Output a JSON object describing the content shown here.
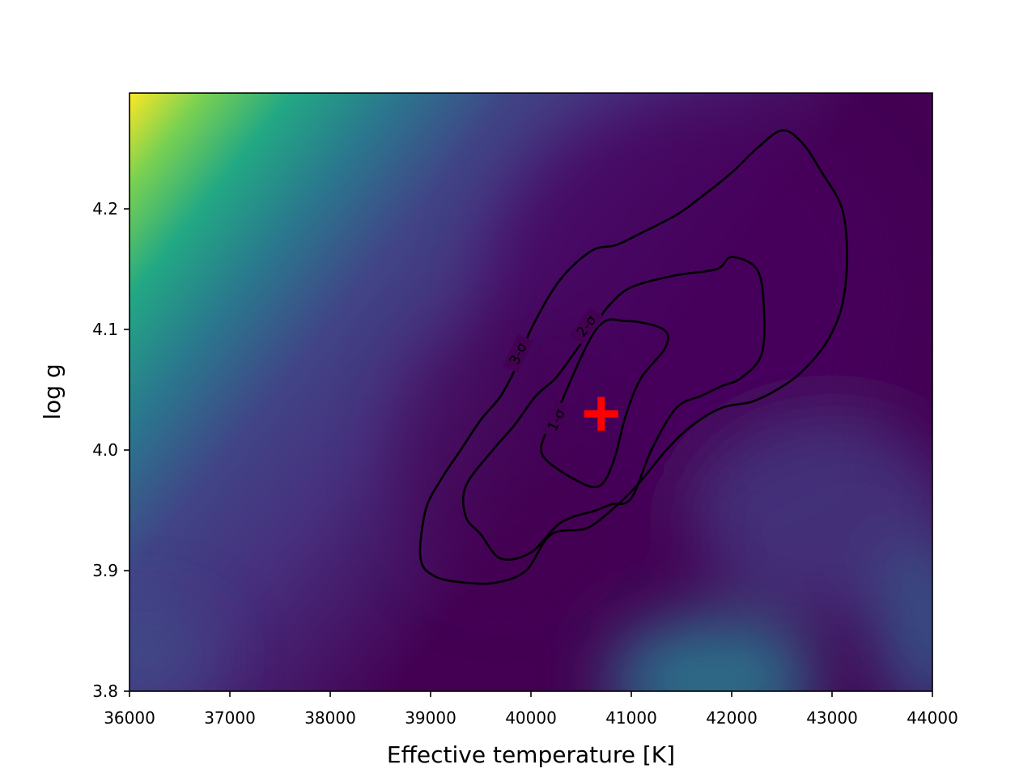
{
  "chart_data": {
    "type": "heatmap",
    "title": "",
    "xlabel": "Effective temperature [K]",
    "ylabel": "log g",
    "xlim": [
      36000,
      44000
    ],
    "ylim": [
      3.8,
      4.296
    ],
    "x_ticks": [
      36000,
      37000,
      38000,
      39000,
      40000,
      41000,
      42000,
      43000,
      44000
    ],
    "x_tick_labels": [
      "36000",
      "37000",
      "38000",
      "39000",
      "40000",
      "41000",
      "42000",
      "43000",
      "44000"
    ],
    "y_ticks": [
      3.8,
      3.9,
      4.0,
      4.1,
      4.2
    ],
    "y_tick_labels": [
      "3.8",
      "3.9",
      "4.0",
      "4.1",
      "4.2"
    ],
    "colormap": "viridis",
    "grid": false,
    "heatmap_features": [
      {
        "x": 36000,
        "y": 4.296,
        "level": 1.0
      },
      {
        "x": 42000,
        "y": 3.8,
        "level": 0.45
      },
      {
        "x": 44000,
        "y": 3.85,
        "level": 0.3
      },
      {
        "x": 40500,
        "y": 4.0,
        "level": 0.0
      }
    ],
    "best_fit": {
      "teff": 40700,
      "logg": 4.03,
      "marker": "+",
      "color": "#ff0000"
    },
    "contours": [
      {
        "label": "1-σ",
        "label_at": [
          40250,
          4.025
        ],
        "points": [
          [
            40250,
            4.03
          ],
          [
            40650,
            4.1
          ],
          [
            40950,
            4.107
          ],
          [
            41320,
            4.1
          ],
          [
            41340,
            4.085
          ],
          [
            41100,
            4.06
          ],
          [
            40950,
            4.03
          ],
          [
            40820,
            3.99
          ],
          [
            40680,
            3.97
          ],
          [
            40450,
            3.975
          ],
          [
            40120,
            3.995
          ],
          [
            40150,
            4.015
          ],
          [
            40250,
            4.03
          ]
        ]
      },
      {
        "label": "2-σ",
        "label_at": [
          40550,
          4.103
        ],
        "points": [
          [
            40470,
            4.085
          ],
          [
            40650,
            4.105
          ],
          [
            40780,
            4.12
          ],
          [
            41000,
            4.135
          ],
          [
            41450,
            4.145
          ],
          [
            41850,
            4.15
          ],
          [
            42000,
            4.16
          ],
          [
            42250,
            4.15
          ],
          [
            42320,
            4.12
          ],
          [
            42300,
            4.08
          ],
          [
            42100,
            4.06
          ],
          [
            41900,
            4.053
          ],
          [
            41700,
            4.045
          ],
          [
            41450,
            4.035
          ],
          [
            41200,
            4.0
          ],
          [
            41000,
            3.96
          ],
          [
            40800,
            3.955
          ],
          [
            40650,
            3.95
          ],
          [
            40300,
            3.94
          ],
          [
            40000,
            3.915
          ],
          [
            39700,
            3.91
          ],
          [
            39500,
            3.93
          ],
          [
            39350,
            3.945
          ],
          [
            39350,
            3.97
          ],
          [
            39620,
            4.0
          ],
          [
            39830,
            4.02
          ],
          [
            40050,
            4.045
          ],
          [
            40250,
            4.06
          ],
          [
            40470,
            4.085
          ]
        ]
      },
      {
        "label": "3-σ",
        "label_at": [
          39870,
          4.08
        ],
        "points": [
          [
            40000,
            4.1
          ],
          [
            40280,
            4.14
          ],
          [
            40600,
            4.165
          ],
          [
            40850,
            4.17
          ],
          [
            41100,
            4.18
          ],
          [
            41450,
            4.195
          ],
          [
            41700,
            4.21
          ],
          [
            42000,
            4.23
          ],
          [
            42250,
            4.25
          ],
          [
            42500,
            4.265
          ],
          [
            42700,
            4.255
          ],
          [
            42900,
            4.23
          ],
          [
            43100,
            4.2
          ],
          [
            43150,
            4.16
          ],
          [
            43100,
            4.12
          ],
          [
            42950,
            4.09
          ],
          [
            42700,
            4.065
          ],
          [
            42450,
            4.05
          ],
          [
            42200,
            4.04
          ],
          [
            41900,
            4.035
          ],
          [
            41600,
            4.02
          ],
          [
            41350,
            4.0
          ],
          [
            41050,
            3.97
          ],
          [
            40800,
            3.95
          ],
          [
            40550,
            3.935
          ],
          [
            40200,
            3.93
          ],
          [
            39950,
            3.9
          ],
          [
            39650,
            3.89
          ],
          [
            39350,
            3.89
          ],
          [
            39050,
            3.895
          ],
          [
            38900,
            3.91
          ],
          [
            38950,
            3.95
          ],
          [
            39100,
            3.975
          ],
          [
            39300,
            4.0
          ],
          [
            39500,
            4.025
          ],
          [
            39700,
            4.045
          ],
          [
            39870,
            4.072
          ],
          [
            40000,
            4.1
          ]
        ]
      }
    ]
  }
}
